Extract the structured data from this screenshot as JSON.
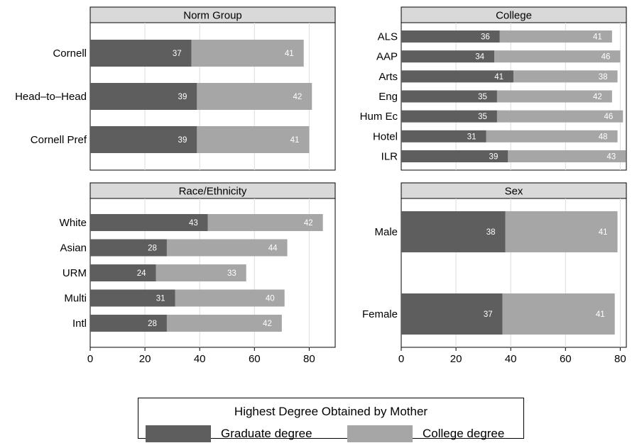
{
  "colors": {
    "graduate": "#5e5e5e",
    "college": "#a6a6a6",
    "title_bg": "#d9d9d9",
    "grid": "#dcdcdc"
  },
  "legend": {
    "title": "Highest Degree Obtained by Mother",
    "items": [
      {
        "label": "Graduate degree",
        "color": "#5e5e5e"
      },
      {
        "label": "College degree",
        "color": "#a6a6a6"
      }
    ]
  },
  "chart_data": [
    {
      "type": "bar",
      "orientation": "horizontal",
      "stacked": true,
      "title": "Norm Group",
      "categories": [
        "Cornell",
        "Head–to–Head",
        "Cornell Pref"
      ],
      "series": [
        {
          "name": "Graduate degree",
          "values": [
            37,
            39,
            39
          ]
        },
        {
          "name": "College degree",
          "values": [
            41,
            42,
            41
          ]
        }
      ],
      "xlim": [
        0,
        90
      ],
      "xticks": [
        0,
        20,
        40,
        60,
        80
      ],
      "grid": true
    },
    {
      "type": "bar",
      "orientation": "horizontal",
      "stacked": true,
      "title": "College",
      "categories": [
        "ALS",
        "AAP",
        "Arts",
        "Eng",
        "Hum Ec",
        "Hotel",
        "ILR"
      ],
      "series": [
        {
          "name": "Graduate degree",
          "values": [
            36,
            34,
            41,
            35,
            35,
            31,
            39
          ]
        },
        {
          "name": "College degree",
          "values": [
            41,
            46,
            38,
            42,
            46,
            48,
            43
          ]
        }
      ],
      "xlim": [
        0,
        90
      ],
      "xticks": [
        0,
        20,
        40,
        60,
        80
      ],
      "grid": true
    },
    {
      "type": "bar",
      "orientation": "horizontal",
      "stacked": true,
      "title": "Race/Ethnicity",
      "categories": [
        "White",
        "Asian",
        "URM",
        "Multi",
        "Intl"
      ],
      "series": [
        {
          "name": "Graduate degree",
          "values": [
            43,
            28,
            24,
            31,
            28
          ]
        },
        {
          "name": "College degree",
          "values": [
            42,
            44,
            33,
            40,
            42
          ]
        }
      ],
      "xlim": [
        0,
        90
      ],
      "xticks": [
        0,
        20,
        40,
        60,
        80
      ],
      "grid": true
    },
    {
      "type": "bar",
      "orientation": "horizontal",
      "stacked": true,
      "title": "Sex",
      "categories": [
        "Male",
        "Female"
      ],
      "series": [
        {
          "name": "Graduate degree",
          "values": [
            38,
            37
          ]
        },
        {
          "name": "College degree",
          "values": [
            41,
            41
          ]
        }
      ],
      "xlim": [
        0,
        90
      ],
      "xticks": [
        0,
        20,
        40,
        60,
        80
      ],
      "grid": true
    }
  ]
}
